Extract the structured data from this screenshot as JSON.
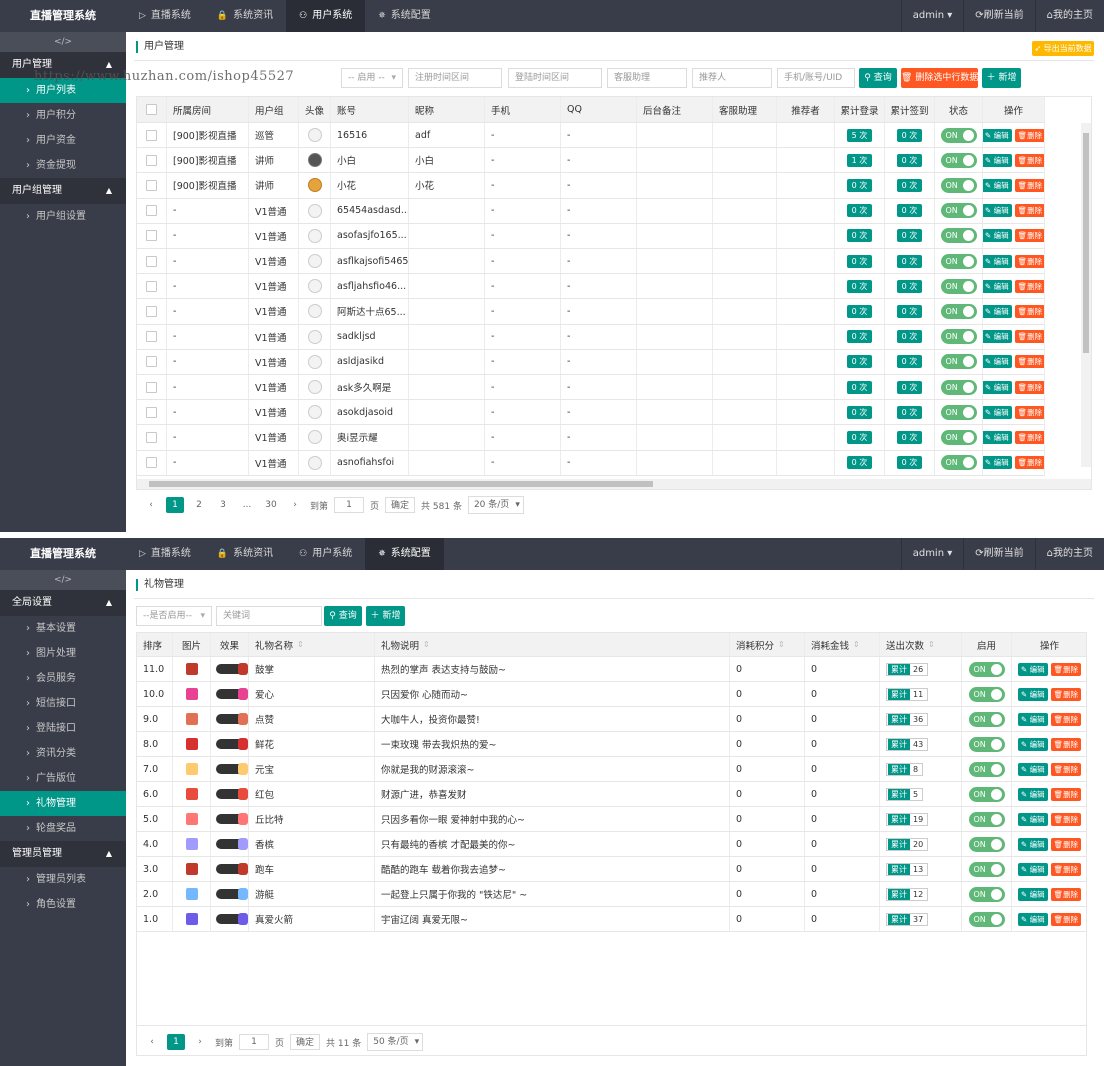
{
  "screen1": {
    "header": {
      "brand": "直播管理系统",
      "nav": [
        {
          "icon": "▷",
          "label": "直播系统"
        },
        {
          "icon": "🔒",
          "label": "系统资讯"
        },
        {
          "icon": "⚇",
          "label": "用户系统"
        },
        {
          "icon": "✵",
          "label": "系统配置"
        }
      ],
      "active_nav": 2,
      "right": [
        "admin ▾",
        "⟳刷新当前",
        "⌂我的主页"
      ]
    },
    "sidebar": {
      "collapse": "</>",
      "groups": [
        {
          "label": "用户管理",
          "items": [
            "用户列表",
            "用户积分",
            "用户资金",
            "资金提现"
          ],
          "active": 0
        },
        {
          "label": "用户组管理",
          "items": [
            "用户组设置"
          ],
          "active": -1
        }
      ]
    },
    "page_title": "用户管理",
    "export_label": "导出当前数据",
    "filters": [
      {
        "placeholder": "-- 启用 --"
      },
      {
        "placeholder": "注册时间区间"
      },
      {
        "placeholder": "登陆时间区间"
      },
      {
        "placeholder": "客服助理"
      },
      {
        "placeholder": "推荐人"
      },
      {
        "placeholder": "手机/账号/UID"
      }
    ],
    "buttons": {
      "search": "查询",
      "delete": "删除选中行数据",
      "add": "新增"
    },
    "watermark": "https://www.huzhan.com/ishop45527",
    "table": {
      "columns": [
        "所属房间",
        "用户组",
        "头像",
        "账号",
        "昵称",
        "手机",
        "QQ",
        "后台备注",
        "客服助理",
        "推荐者",
        "累计登录",
        "累计签到",
        "状态",
        "操作"
      ],
      "rows": [
        {
          "room": "[900]影视直播",
          "group": "巡管",
          "avatar": "default",
          "account": "16516",
          "nick": "adf",
          "phone": "-",
          "qq": "-",
          "login": "5 次",
          "sign": "0 次"
        },
        {
          "room": "[900]影视直播",
          "group": "讲师",
          "avatar": "img1",
          "account": "小白",
          "nick": "小白",
          "phone": "-",
          "qq": "-",
          "login": "1 次",
          "sign": "0 次"
        },
        {
          "room": "[900]影视直播",
          "group": "讲师",
          "avatar": "img2",
          "account": "小花",
          "nick": "小花",
          "phone": "-",
          "qq": "-",
          "login": "0 次",
          "sign": "0 次"
        },
        {
          "room": "-",
          "group": "V1普通",
          "avatar": "default",
          "account": "65454asdasd...",
          "nick": "",
          "phone": "-",
          "qq": "-",
          "login": "0 次",
          "sign": "0 次"
        },
        {
          "room": "-",
          "group": "V1普通",
          "avatar": "default",
          "account": "asofasjfo165...",
          "nick": "",
          "phone": "-",
          "qq": "-",
          "login": "0 次",
          "sign": "0 次"
        },
        {
          "room": "-",
          "group": "V1普通",
          "avatar": "default",
          "account": "asflkajsofi5465",
          "nick": "",
          "phone": "-",
          "qq": "-",
          "login": "0 次",
          "sign": "0 次"
        },
        {
          "room": "-",
          "group": "V1普通",
          "avatar": "default",
          "account": "asfljahsfio46...",
          "nick": "",
          "phone": "-",
          "qq": "-",
          "login": "0 次",
          "sign": "0 次"
        },
        {
          "room": "-",
          "group": "V1普通",
          "avatar": "default",
          "account": "阿斯达十点65...",
          "nick": "",
          "phone": "-",
          "qq": "-",
          "login": "0 次",
          "sign": "0 次"
        },
        {
          "room": "-",
          "group": "V1普通",
          "avatar": "default",
          "account": "sadkljsd",
          "nick": "",
          "phone": "-",
          "qq": "-",
          "login": "0 次",
          "sign": "0 次"
        },
        {
          "room": "-",
          "group": "V1普通",
          "avatar": "default",
          "account": "asldjasikd",
          "nick": "",
          "phone": "-",
          "qq": "-",
          "login": "0 次",
          "sign": "0 次"
        },
        {
          "room": "-",
          "group": "V1普通",
          "avatar": "default",
          "account": "ask多久啊是",
          "nick": "",
          "phone": "-",
          "qq": "-",
          "login": "0 次",
          "sign": "0 次"
        },
        {
          "room": "-",
          "group": "V1普通",
          "avatar": "default",
          "account": "asokdjasoid",
          "nick": "",
          "phone": "-",
          "qq": "-",
          "login": "0 次",
          "sign": "0 次"
        },
        {
          "room": "-",
          "group": "V1普通",
          "avatar": "default",
          "account": "奥i昱示耀",
          "nick": "",
          "phone": "-",
          "qq": "-",
          "login": "0 次",
          "sign": "0 次"
        },
        {
          "room": "-",
          "group": "V1普通",
          "avatar": "default",
          "account": "asnofiahsfoi",
          "nick": "",
          "phone": "-",
          "qq": "-",
          "login": "0 次",
          "sign": "0 次"
        }
      ],
      "status_label": "ON",
      "edit_label": "编辑",
      "delete_label": "删除"
    },
    "pager": {
      "pages": [
        "1",
        "2",
        "3",
        "...",
        "30"
      ],
      "goto_label": "到第",
      "page_input": "1",
      "page_unit": "页",
      "confirm": "确定",
      "total": "共 581 条",
      "per_page": "20 条/页"
    }
  },
  "screen2": {
    "header": {
      "brand": "直播管理系统",
      "nav": [
        {
          "icon": "▷",
          "label": "直播系统"
        },
        {
          "icon": "🔒",
          "label": "系统资讯"
        },
        {
          "icon": "⚇",
          "label": "用户系统"
        },
        {
          "icon": "✵",
          "label": "系统配置"
        }
      ],
      "active_nav": 3,
      "right": [
        "admin ▾",
        "⟳刷新当前",
        "⌂我的主页"
      ]
    },
    "sidebar": {
      "collapse": "</>",
      "groups": [
        {
          "label": "全局设置",
          "items": [
            "基本设置",
            "图片处理",
            "会员服务",
            "短信接口",
            "登陆接口",
            "资讯分类",
            "广告版位",
            "礼物管理",
            "轮盘奖品"
          ],
          "active": 7
        },
        {
          "label": "管理员管理",
          "items": [
            "管理员列表",
            "角色设置"
          ],
          "active": -1
        }
      ]
    },
    "page_title": "礼物管理",
    "filters": [
      {
        "placeholder": "--是否启用--"
      },
      {
        "placeholder": "关键词"
      }
    ],
    "buttons": {
      "search": "查询",
      "add": "新增"
    },
    "table": {
      "columns": [
        "排序",
        "图片",
        "效果",
        "礼物名称",
        "礼物说明",
        "消耗积分",
        "消耗金钱",
        "送出次数",
        "启用",
        "操作"
      ],
      "rows": [
        {
          "order": "11.0",
          "color": "#c0392b",
          "name": "鼓掌",
          "desc": "热烈的掌声 表达支持与鼓励~",
          "points": "0",
          "money": "0",
          "sent": "26"
        },
        {
          "order": "10.0",
          "color": "#e84393",
          "name": "爱心",
          "desc": "只因爱你 心随而动~",
          "points": "0",
          "money": "0",
          "sent": "11"
        },
        {
          "order": "9.0",
          "color": "#e17055",
          "name": "点赞",
          "desc": "大咖牛人，投资你最赞!",
          "points": "0",
          "money": "0",
          "sent": "36"
        },
        {
          "order": "8.0",
          "color": "#d63031",
          "name": "鲜花",
          "desc": "一束玫瑰 带去我炽热的爱~",
          "points": "0",
          "money": "0",
          "sent": "43"
        },
        {
          "order": "7.0",
          "color": "#fdcb6e",
          "name": "元宝",
          "desc": "你就是我的财源滚滚~",
          "points": "0",
          "money": "0",
          "sent": "8"
        },
        {
          "order": "6.0",
          "color": "#e74c3c",
          "name": "红包",
          "desc": "财源广进，恭喜发财",
          "points": "0",
          "money": "0",
          "sent": "5"
        },
        {
          "order": "5.0",
          "color": "#ff7675",
          "name": "丘比特",
          "desc": "只因多看你一眼 爱神射中我的心~",
          "points": "0",
          "money": "0",
          "sent": "19"
        },
        {
          "order": "4.0",
          "color": "#a29bfe",
          "name": "香槟",
          "desc": "只有最纯的香槟 才配最美的你~",
          "points": "0",
          "money": "0",
          "sent": "20"
        },
        {
          "order": "3.0",
          "color": "#c0392b",
          "name": "跑车",
          "desc": "酷酷的跑车 载着你我去追梦~",
          "points": "0",
          "money": "0",
          "sent": "13"
        },
        {
          "order": "2.0",
          "color": "#74b9ff",
          "name": "游艇",
          "desc": "一起登上只属于你我的 \"铁达尼\" ~",
          "points": "0",
          "money": "0",
          "sent": "12"
        },
        {
          "order": "1.0",
          "color": "#6c5ce7",
          "name": "真爱火箭",
          "desc": "宇宙辽阔 真爱无限~",
          "points": "0",
          "money": "0",
          "sent": "37"
        }
      ],
      "total_label": "累计",
      "status_label": "ON",
      "edit_label": "编辑",
      "delete_label": "删除"
    },
    "pager": {
      "pages": [
        "1"
      ],
      "goto_label": "到第",
      "page_input": "1",
      "page_unit": "页",
      "confirm": "确定",
      "total": "共 11 条",
      "per_page": "50 条/页"
    }
  }
}
